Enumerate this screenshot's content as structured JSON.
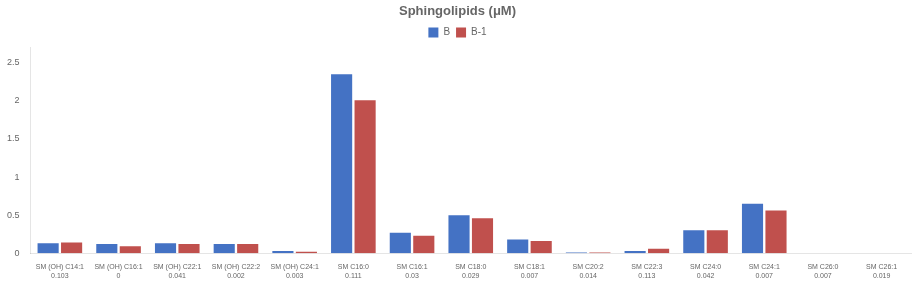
{
  "chart_data": {
    "type": "bar",
    "title": "Sphingolipids (μM)",
    "categories": [
      "SM (OH) C14:1",
      "SM (OH) C16:1",
      "SM (OH) C22:1",
      "SM (OH) C22:2",
      "SM (OH) C24:1",
      "SM C16:0",
      "SM C16:1",
      "SM C18:0",
      "SM C18:1",
      "SM C20:2",
      "SM C22:3",
      "SM C24:0",
      "SM C24:1",
      "SM C26:0",
      "SM C26:1"
    ],
    "annotations": [
      "0.103",
      "0",
      "0.041",
      "0.002",
      "0.003",
      "0.111",
      "0.03",
      "0.029",
      "0.007",
      "0.014",
      "0.113",
      "0.042",
      "0.007",
      "0.007",
      "0.019"
    ],
    "series": [
      {
        "name": "B",
        "color": "#4472C4",
        "values": [
          0.13,
          0.12,
          0.13,
          0.12,
          0.03,
          2.35,
          0.27,
          0.5,
          0.18,
          0.01,
          0.03,
          0.3,
          0.65,
          0.0,
          0.0
        ]
      },
      {
        "name": "B-1",
        "color": "#C0504D",
        "values": [
          0.14,
          0.09,
          0.12,
          0.12,
          0.02,
          2.01,
          0.23,
          0.46,
          0.16,
          0.01,
          0.06,
          0.3,
          0.56,
          0.0,
          0.0
        ]
      }
    ],
    "ylim": [
      0,
      2.7
    ],
    "yticks": [
      0,
      0.5,
      1,
      1.5,
      2,
      2.5
    ],
    "grid": false,
    "legend": "top"
  }
}
